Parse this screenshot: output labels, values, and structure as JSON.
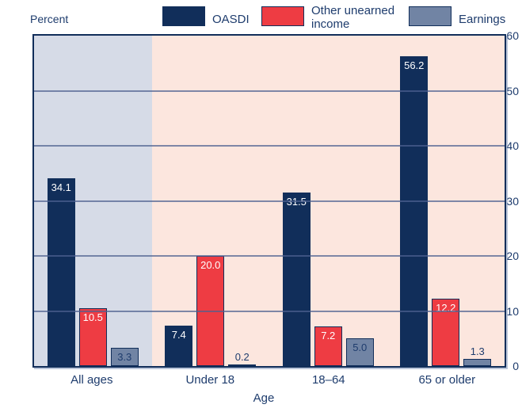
{
  "colors": {
    "navy": "#112e5a",
    "red": "#ee3c43",
    "blue_gray": "#7184a4",
    "text_navy": "#1e3c6d",
    "band_all_ages": "#d6dbe7",
    "band_other": "#fce6de",
    "gridline": "#4e6190",
    "value_label_light": "#ffffff"
  },
  "chart_data": {
    "type": "bar",
    "title": "",
    "ylabel": "Percent",
    "xlabel": "Age",
    "ylim": [
      0,
      60
    ],
    "yticks": [
      0,
      10,
      20,
      30,
      40,
      50,
      60
    ],
    "grid": true,
    "legend_position": "top",
    "categories": [
      "All ages",
      "Under 18",
      "18–64",
      "65 or older"
    ],
    "band_colors": [
      "#d6dbe7",
      "#fce6de",
      "#fce6de",
      "#fce6de"
    ],
    "series": [
      {
        "name": "OASDI",
        "color": "#112e5a",
        "value_label_color": "#ffffff",
        "values": [
          34.1,
          7.4,
          31.5,
          56.2
        ]
      },
      {
        "name": "Other unearned income",
        "color": "#ee3c43",
        "value_label_color": "#ffffff",
        "values": [
          10.5,
          20.0,
          7.2,
          12.2
        ]
      },
      {
        "name": "Earnings",
        "color": "#7184a4",
        "value_label_color": "#1e3c6d",
        "values": [
          3.3,
          0.2,
          5.0,
          1.3
        ]
      }
    ]
  }
}
